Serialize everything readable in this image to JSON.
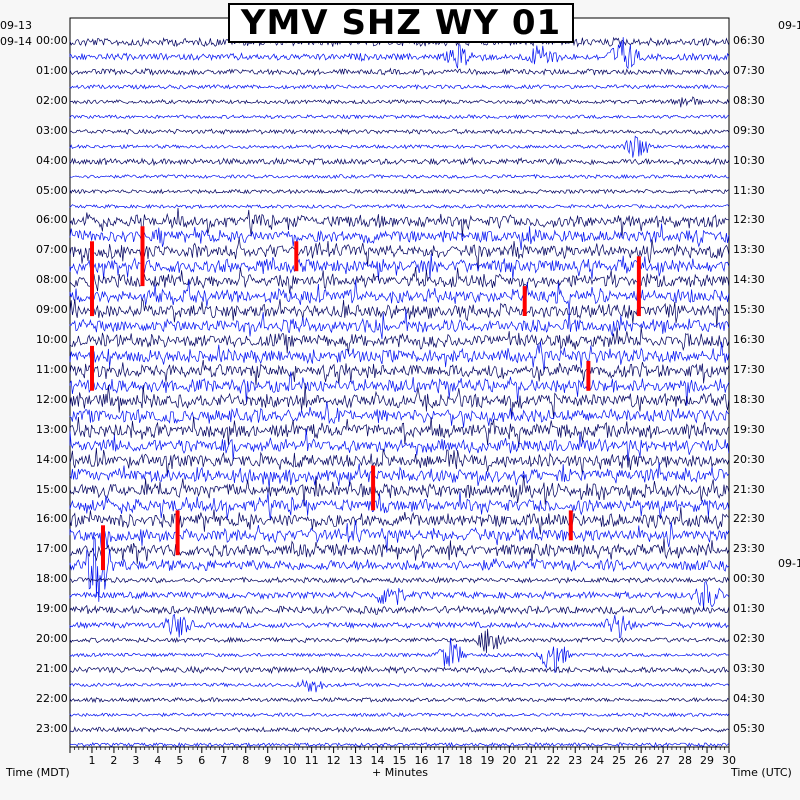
{
  "title": "YMV SHZ WY 01",
  "date_left_top": "09-13",
  "date_left_second": "09-14",
  "date_right_top": "09-1",
  "date_right_mid": "09-1",
  "xlabel_left": "Time (MDT)",
  "xlabel_center": "+ Minutes",
  "xlabel_right": "Time (UTC)",
  "colors": {
    "trace_dark": "#00005e",
    "trace_blue": "#0010f0",
    "clipped": "#ff0000",
    "background": "#ffffff",
    "page": "#f7f7f7"
  },
  "chart_data": {
    "type": "helicorder",
    "x_range": [
      0,
      30
    ],
    "x_ticks": [
      "1",
      "2",
      "3",
      "4",
      "5",
      "6",
      "7",
      "8",
      "9",
      "10",
      "11",
      "12",
      "13",
      "14",
      "15",
      "16",
      "17",
      "18",
      "19",
      "20",
      "21",
      "22",
      "23",
      "24",
      "25",
      "26",
      "27",
      "28",
      "29",
      "30"
    ],
    "left_labels": [
      "00:00",
      "01:00",
      "02:00",
      "03:00",
      "04:00",
      "05:00",
      "06:00",
      "07:00",
      "08:00",
      "09:00",
      "10:00",
      "11:00",
      "12:00",
      "13:00",
      "14:00",
      "15:00",
      "16:00",
      "17:00",
      "18:00",
      "19:00",
      "20:00",
      "21:00",
      "22:00",
      "23:00"
    ],
    "right_labels": [
      "06:30",
      "07:30",
      "08:30",
      "09:30",
      "10:30",
      "11:30",
      "12:30",
      "13:30",
      "14:30",
      "15:30",
      "16:30",
      "17:30",
      "18:30",
      "19:30",
      "20:30",
      "21:30",
      "22:30",
      "23:30",
      "00:30",
      "01:30",
      "02:30",
      "03:30",
      "04:30",
      "05:30"
    ],
    "rows_per_hour": 2,
    "row_count": 48,
    "row_activity": [
      0.55,
      0.4,
      0.3,
      0.15,
      0.15,
      0.1,
      0.2,
      0.1,
      0.35,
      0.1,
      0.15,
      0.1,
      0.9,
      0.9,
      1,
      1,
      1,
      1,
      1,
      1,
      1,
      1,
      1,
      1,
      1,
      1,
      1,
      1,
      1,
      1,
      1,
      1,
      1,
      1,
      0.9,
      0.8,
      0.25,
      0.4,
      0.5,
      0.3,
      0.2,
      0.1,
      0.35,
      0.1,
      0.15,
      0.1,
      0.2,
      0.1
    ],
    "events": [
      {
        "row": 1,
        "minute": 17.8,
        "amp": 0.7
      },
      {
        "row": 1,
        "minute": 21.5,
        "amp": 0.8
      },
      {
        "row": 1,
        "minute": 25.2,
        "amp": 1.2
      },
      {
        "row": 4,
        "minute": 28.0,
        "amp": 0.4
      },
      {
        "row": 7,
        "minute": 25.8,
        "amp": 0.8
      },
      {
        "row": 35,
        "minute": 1.3,
        "amp": 2.5
      },
      {
        "row": 37,
        "minute": 14.6,
        "amp": 0.9
      },
      {
        "row": 37,
        "minute": 29.0,
        "amp": 0.9
      },
      {
        "row": 39,
        "minute": 4.9,
        "amp": 0.8
      },
      {
        "row": 39,
        "minute": 25.0,
        "amp": 0.8
      },
      {
        "row": 40,
        "minute": 19.2,
        "amp": 1.1
      },
      {
        "row": 41,
        "minute": 17.3,
        "amp": 1.0
      },
      {
        "row": 41,
        "minute": 22.0,
        "amp": 1.2
      },
      {
        "row": 43,
        "minute": 11.0,
        "amp": 0.5
      }
    ],
    "clipped": [
      {
        "row": 14,
        "minute": 1.0,
        "span": 5
      },
      {
        "row": 13,
        "minute": 3.3,
        "span": 4
      },
      {
        "row": 14,
        "minute": 10.3,
        "span": 2
      },
      {
        "row": 15,
        "minute": 25.9,
        "span": 4
      },
      {
        "row": 21,
        "minute": 1.0,
        "span": 3
      },
      {
        "row": 17,
        "minute": 20.7,
        "span": 2
      },
      {
        "row": 22,
        "minute": 23.6,
        "span": 2
      },
      {
        "row": 29,
        "minute": 13.8,
        "span": 3
      },
      {
        "row": 32,
        "minute": 4.9,
        "span": 3
      },
      {
        "row": 33,
        "minute": 1.5,
        "span": 3
      },
      {
        "row": 32,
        "minute": 22.8,
        "span": 2
      }
    ]
  }
}
